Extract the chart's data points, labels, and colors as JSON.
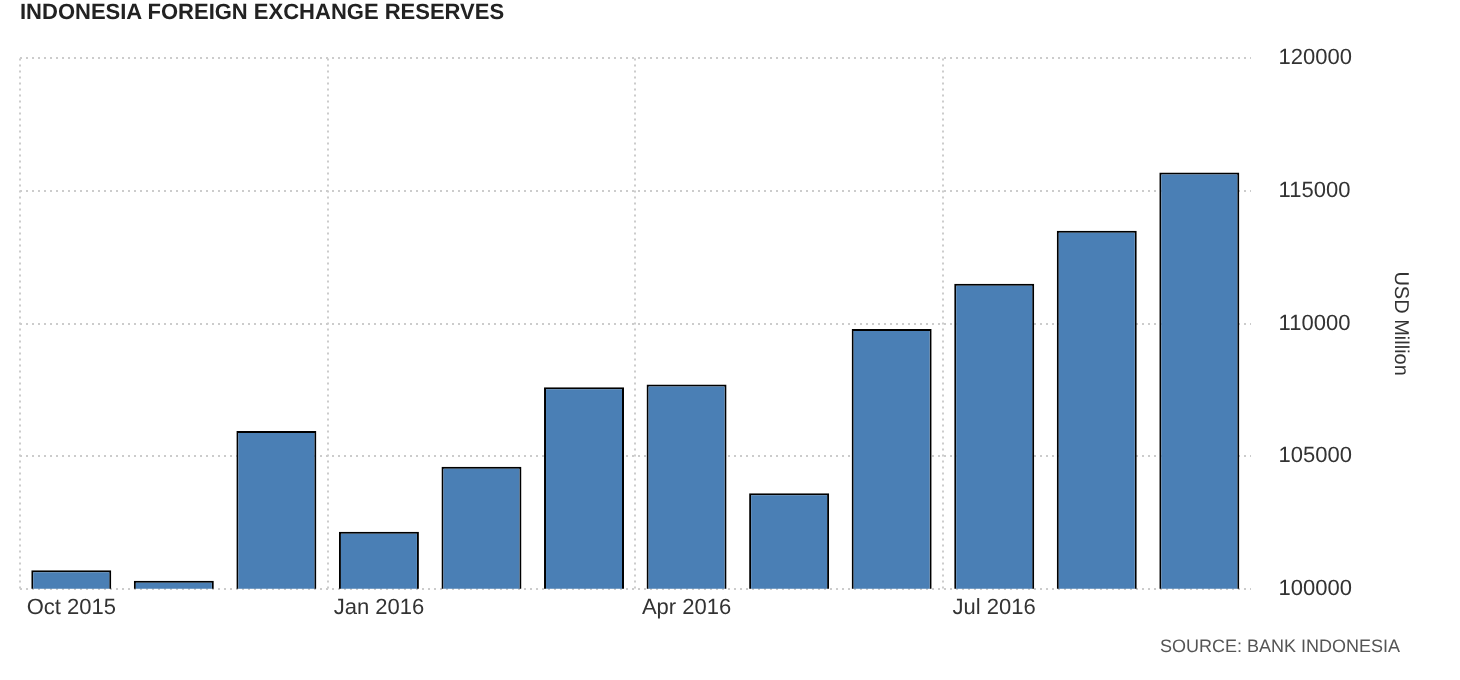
{
  "chart_data": {
    "type": "bar",
    "title": "INDONESIA FOREIGN EXCHANGE RESERVES",
    "ylabel": "USD Million",
    "categories": [
      "Oct 2015",
      null,
      null,
      "Jan 2016",
      null,
      null,
      "Apr 2016",
      null,
      null,
      "Jul 2016",
      null,
      null
    ],
    "series": [
      {
        "color": "#4a7fb5",
        "values": [
          100700,
          100300,
          105950,
          102150,
          104600,
          107600,
          107700,
          103600,
          109800,
          111500,
          113500,
          115700
        ]
      }
    ],
    "ylim": [
      100000,
      120000
    ],
    "yticks": [
      100000,
      105000,
      110000,
      115000,
      120000
    ],
    "grid": true,
    "legend": false,
    "annotations": [
      "SOURCE: BANK INDONESIA"
    ]
  }
}
